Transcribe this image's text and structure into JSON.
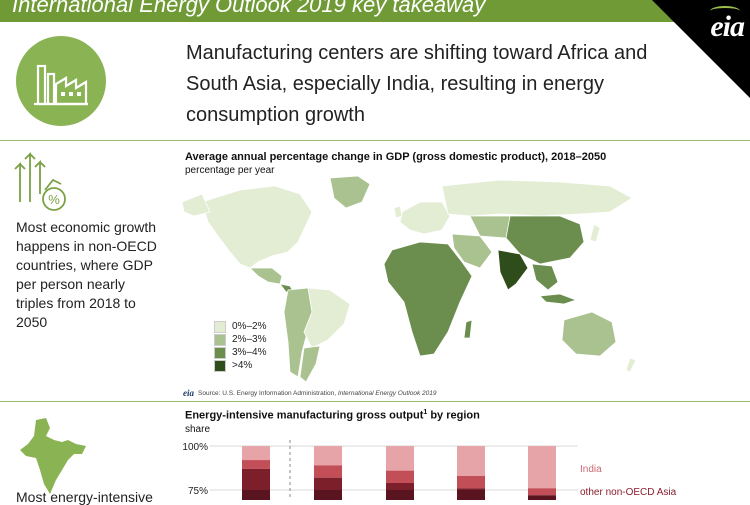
{
  "banner": {
    "title": "International Energy Outlook 2019 key takeaway"
  },
  "logo": {
    "text": "eia"
  },
  "headline": "Manufacturing centers are shifting toward Africa and South Asia, especially India, resulting in energy consumption growth",
  "side_text": "Most economic growth happens in non-OECD countries, where GDP per person nearly triples from 2018 to 2050",
  "bottom_text": "Most energy-intensive",
  "icons": [
    "factory-icon",
    "growth-arrows-percent-icon",
    "india-map-icon"
  ],
  "map": {
    "title": "Average annual percentage change in GDP (gross domestic product), 2018–2050",
    "subtitle": "percentage per year",
    "legend": [
      {
        "label": "0%–2%",
        "color": "#e2edd4"
      },
      {
        "label": "2%–3%",
        "color": "#a9c290"
      },
      {
        "label": "3%–4%",
        "color": "#6b8e4e"
      },
      {
        "label": ">4%",
        "color": "#2e4d1a"
      }
    ],
    "source_logo": "eia",
    "source_prefix": "Source: U.S. Energy Information Administration, ",
    "source_title": "International Energy Outlook 2019"
  },
  "chart_data": {
    "type": "bar",
    "title": "Energy-intensive manufacturing gross output",
    "title_footnote": "1",
    "title_suffix": " by region",
    "ylabel": "share",
    "yticks": [
      "100%",
      "75%"
    ],
    "ylim": [
      75,
      100
    ],
    "categories": [
      "",
      "",
      "",
      "",
      ""
    ],
    "series": [
      {
        "name": "India",
        "color": "#e6a3a8",
        "values": [
          8,
          11,
          14,
          17,
          24
        ]
      },
      {
        "name": "other non-OECD Asia",
        "color": "#c24e57",
        "values": [
          5,
          7,
          7,
          7,
          4
        ]
      },
      {
        "name": "",
        "color": "#7d1f2a",
        "values": [
          12,
          7,
          4,
          1,
          0
        ]
      }
    ],
    "colors": {
      "India": "#c76a73",
      "other non-OECD Asia": "#8b1d2b"
    }
  }
}
